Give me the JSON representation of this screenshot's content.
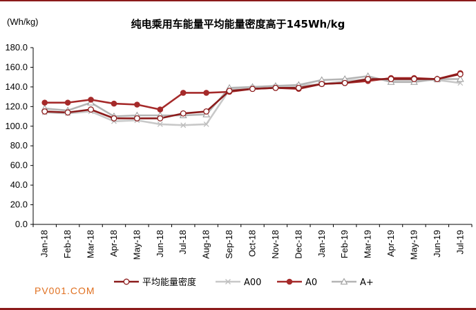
{
  "header": {
    "unit": "(Wh/kg)",
    "watermark": "PV001.COM"
  },
  "chart_data": {
    "type": "line",
    "title": "纯电乘用车能量平均能量密度高于145Wh/kg",
    "xlabel": "",
    "ylabel": "(Wh/kg)",
    "ylim": [
      0,
      180
    ],
    "yticks": [
      "0.0",
      "20.0",
      "40.0",
      "60.0",
      "80.0",
      "100.0",
      "120.0",
      "140.0",
      "160.0",
      "180.0"
    ],
    "categories": [
      "Jan-18",
      "Feb-18",
      "Mar-18",
      "Apr-18",
      "May-18",
      "Jun-18",
      "Jul-18",
      "Aug-18",
      "Sep-18",
      "Oct-18",
      "Nov-18",
      "Dec-18",
      "Jan-19",
      "Feb-19",
      "Mar-19",
      "Apr-19",
      "May-19",
      "Jun-19",
      "Jul-19"
    ],
    "grid": false,
    "legend_position": "bottom",
    "series": [
      {
        "name": "平均能量密度",
        "color": "#8b1a1a",
        "marker": "open-circle",
        "values": [
          115,
          114,
          117,
          108,
          108,
          108,
          113,
          115,
          136,
          138,
          139,
          139,
          143,
          144,
          148,
          148,
          148,
          148,
          153
        ]
      },
      {
        "name": "A00",
        "color": "#c8c8c8",
        "marker": "x",
        "values": [
          114,
          113,
          115,
          105,
          106,
          102,
          101,
          102,
          137,
          139,
          140,
          141,
          143,
          146,
          148,
          147,
          147,
          147,
          144
        ]
      },
      {
        "name": "A0",
        "color": "#a52a2a",
        "marker": "filled-circle",
        "values": [
          124,
          124,
          127,
          123,
          122,
          117,
          134,
          134,
          135,
          138,
          139,
          138,
          143,
          144,
          146,
          149,
          149,
          148,
          154
        ]
      },
      {
        "name": "A+",
        "color": "#b4b4b4",
        "marker": "triangle",
        "values": [
          118,
          116,
          124,
          110,
          111,
          111,
          111,
          112,
          139,
          140,
          141,
          142,
          147,
          148,
          151,
          145,
          145,
          148,
          148
        ]
      }
    ]
  }
}
